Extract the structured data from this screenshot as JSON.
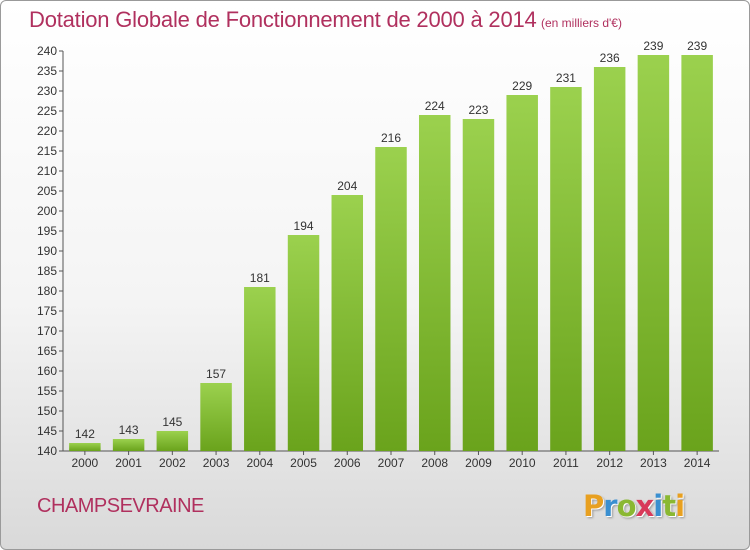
{
  "title": "Dotation Globale de Fonctionnement de 2000 à 2014",
  "unit_note": "(en milliers d'€)",
  "commune": "CHAMPSEVRAINE",
  "logo": {
    "letters": [
      "P",
      "r",
      "o",
      "x",
      "i",
      "t",
      "i"
    ],
    "colors": [
      "#e8a020",
      "#3a8fd0",
      "#8ab832",
      "#d83a5a",
      "#3a8fd0",
      "#8ab832",
      "#e8a020"
    ]
  },
  "colors": {
    "bar_top": "#9bd14e",
    "bar_bottom": "#6aa31c",
    "title": "#b0305e"
  },
  "chart_data": {
    "type": "bar",
    "categories": [
      "2000",
      "2001",
      "2002",
      "2003",
      "2004",
      "2005",
      "2006",
      "2007",
      "2008",
      "2009",
      "2010",
      "2011",
      "2012",
      "2013",
      "2014"
    ],
    "values": [
      142,
      143,
      145,
      157,
      181,
      194,
      204,
      216,
      224,
      223,
      229,
      231,
      236,
      239,
      239
    ],
    "ylim": [
      140,
      240
    ],
    "ytick_step": 5,
    "grid": false
  }
}
